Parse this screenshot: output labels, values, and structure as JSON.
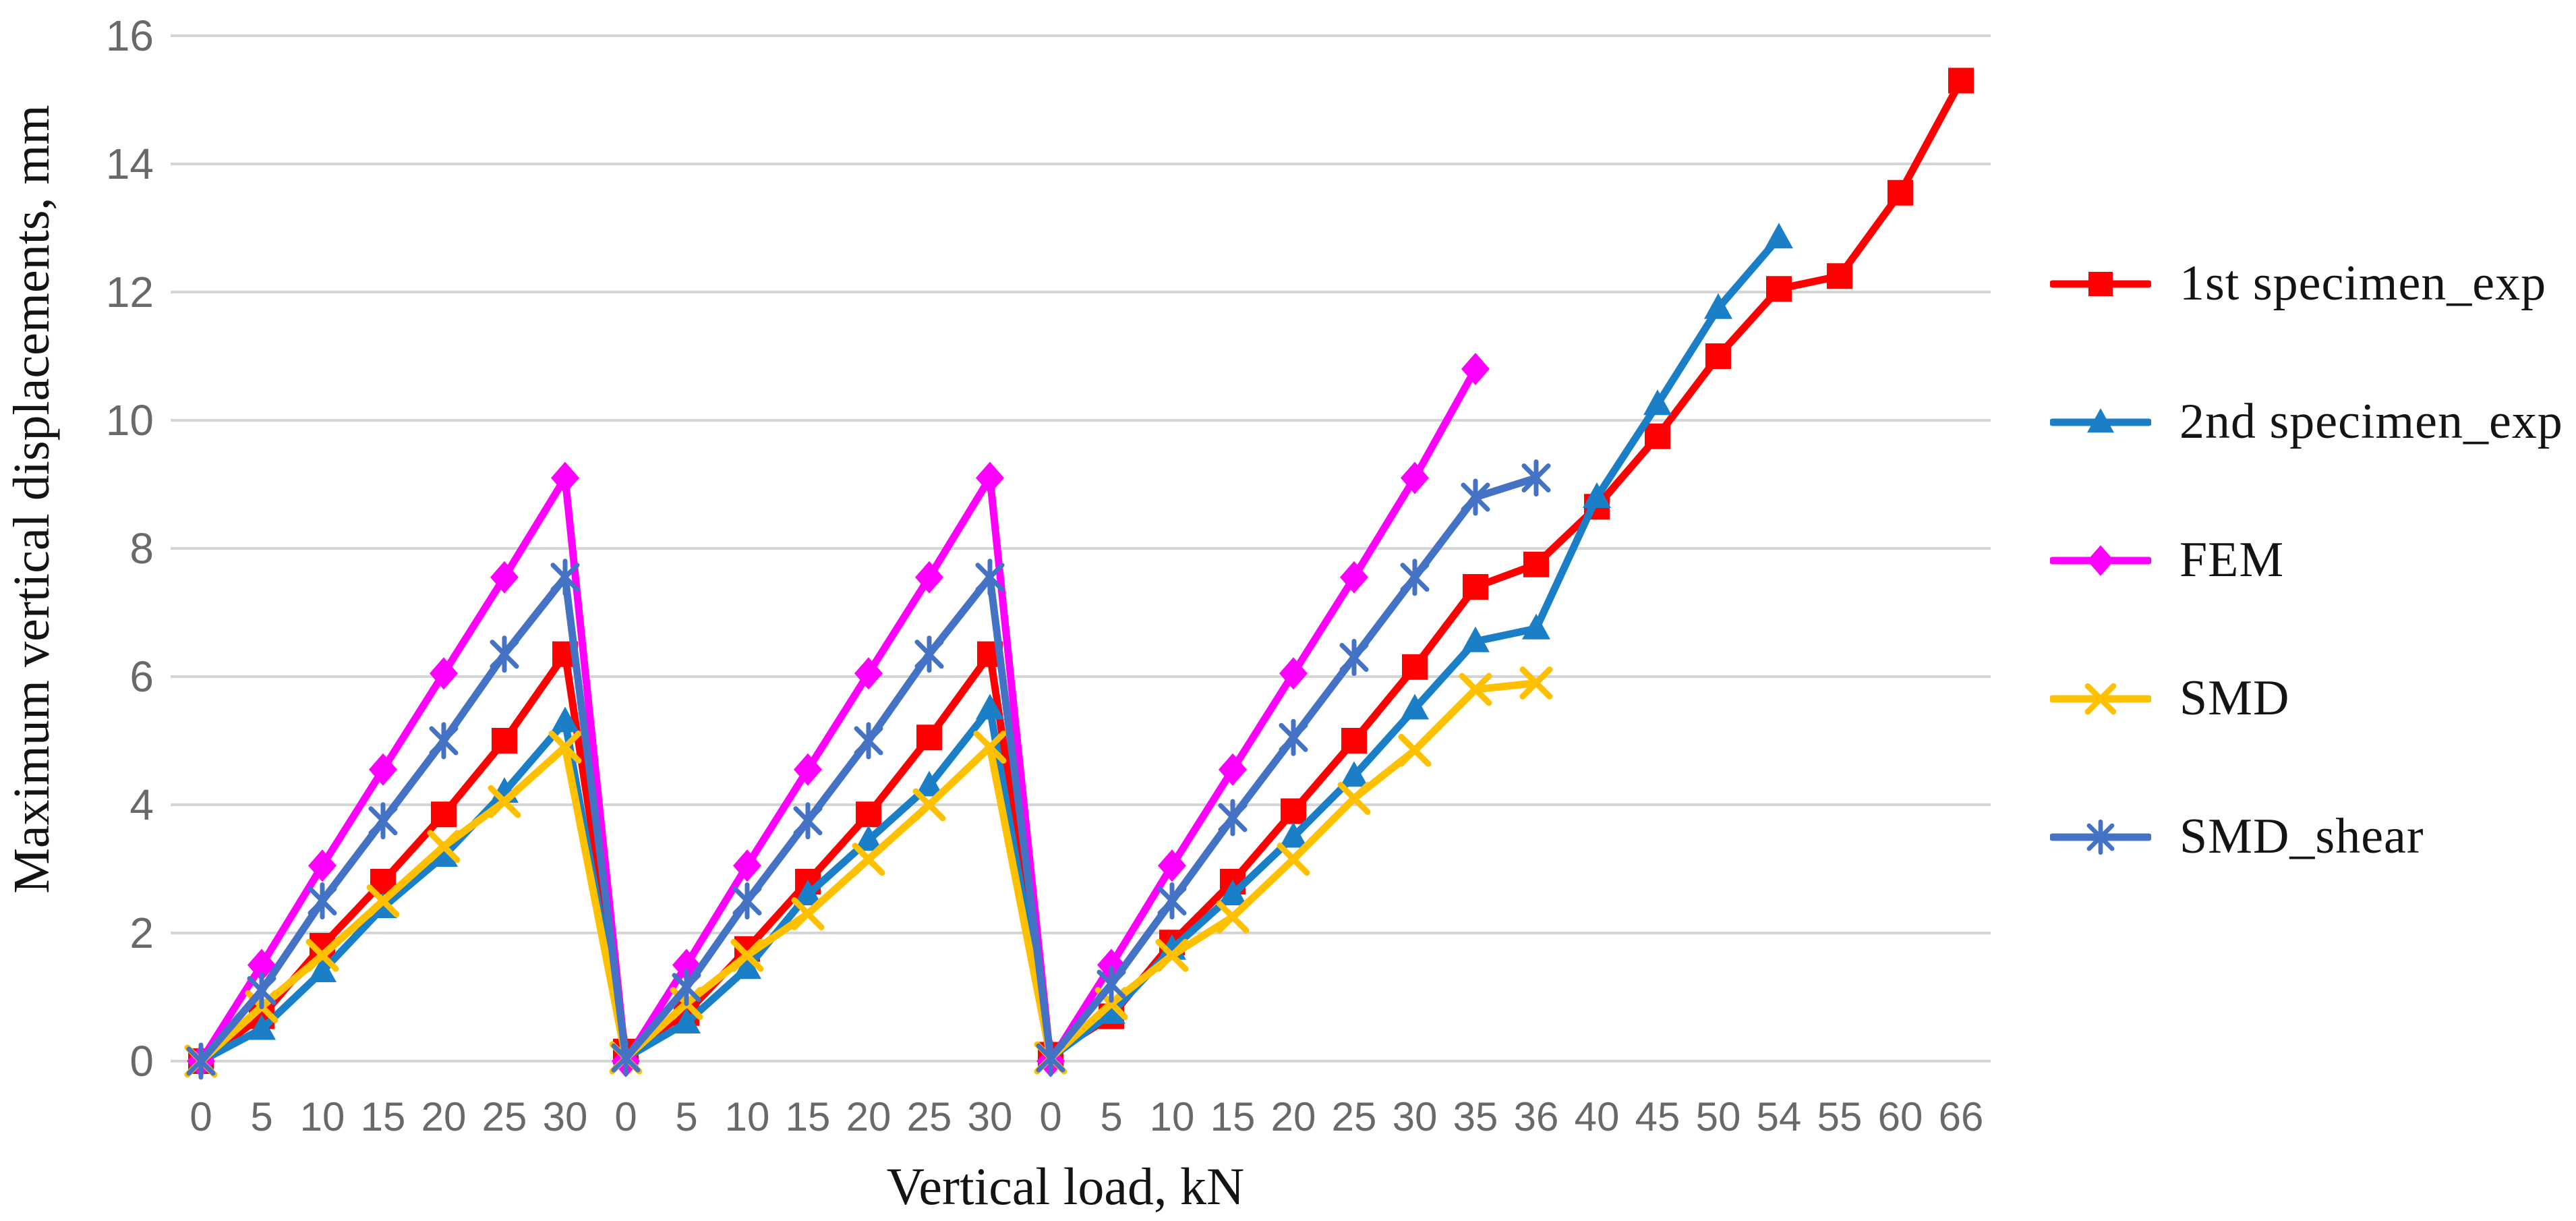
{
  "chart_data": {
    "type": "line",
    "title": "",
    "xlabel": "Vertical load, kN",
    "ylabel": "Maximum vertical displacements, mm",
    "ylim": [
      0,
      16
    ],
    "y_ticks": [
      0,
      2,
      4,
      6,
      8,
      10,
      12,
      14,
      16
    ],
    "grid": "horizontal",
    "legend_position": "right",
    "colors": {
      "grid": "#D5D5D5",
      "tick_text": "#696969",
      "axis_text": "#141414"
    },
    "categories": [
      "0",
      "5",
      "10",
      "15",
      "20",
      "25",
      "30",
      "0",
      "5",
      "10",
      "15",
      "20",
      "25",
      "30",
      "0",
      "5",
      "10",
      "15",
      "20",
      "25",
      "30",
      "35",
      "36",
      "40",
      "45",
      "50",
      "54",
      "55",
      "60",
      "66"
    ],
    "series": [
      {
        "name": "1st specimen_exp",
        "color": "#FF0000",
        "marker": "square",
        "values": [
          0,
          0.7,
          1.8,
          2.8,
          3.85,
          5.0,
          6.35,
          0.15,
          0.75,
          1.75,
          2.8,
          3.85,
          5.05,
          6.35,
          0.1,
          0.7,
          1.85,
          2.8,
          3.9,
          5.0,
          6.15,
          7.4,
          7.75,
          8.65,
          9.75,
          11.0,
          12.05,
          12.25,
          13.55,
          15.3
        ]
      },
      {
        "name": "2nd specimen_exp",
        "color": "#1B7FC7",
        "marker": "triangle",
        "values": [
          0,
          0.5,
          1.4,
          2.4,
          3.2,
          4.2,
          5.3,
          0.05,
          0.6,
          1.45,
          2.6,
          3.45,
          4.3,
          5.5,
          0.05,
          0.75,
          1.75,
          2.6,
          3.5,
          4.45,
          5.5,
          6.55,
          6.75,
          8.8,
          10.25,
          11.75,
          12.85,
          null,
          null,
          null
        ]
      },
      {
        "name": "FEM",
        "color": "#FF00FF",
        "marker": "diamond",
        "values": [
          0,
          1.5,
          3.05,
          4.55,
          6.05,
          7.55,
          9.1,
          0,
          1.5,
          3.05,
          4.55,
          6.05,
          7.55,
          9.1,
          0,
          1.5,
          3.05,
          4.55,
          6.05,
          7.55,
          9.1,
          10.8,
          null,
          null,
          null,
          null,
          null,
          null,
          null,
          null
        ]
      },
      {
        "name": "SMD",
        "color": "#FFC000",
        "marker": "x",
        "values": [
          0,
          0.85,
          1.65,
          2.5,
          3.35,
          4.05,
          4.9,
          0.05,
          0.9,
          1.65,
          2.3,
          3.15,
          4.0,
          4.9,
          0.05,
          0.9,
          1.65,
          2.25,
          3.15,
          4.1,
          4.85,
          5.8,
          5.9,
          null,
          null,
          null,
          null,
          null,
          null,
          null
        ]
      },
      {
        "name": "SMD_shear",
        "color": "#4472C4",
        "marker": "asterisk",
        "values": [
          0,
          1.1,
          2.5,
          3.75,
          5.0,
          6.35,
          7.55,
          0.05,
          1.15,
          2.5,
          3.75,
          5.0,
          6.35,
          7.55,
          0.05,
          1.2,
          2.5,
          3.8,
          5.05,
          6.3,
          7.55,
          8.8,
          9.1,
          null,
          null,
          null,
          null,
          null,
          null,
          null
        ]
      }
    ]
  }
}
